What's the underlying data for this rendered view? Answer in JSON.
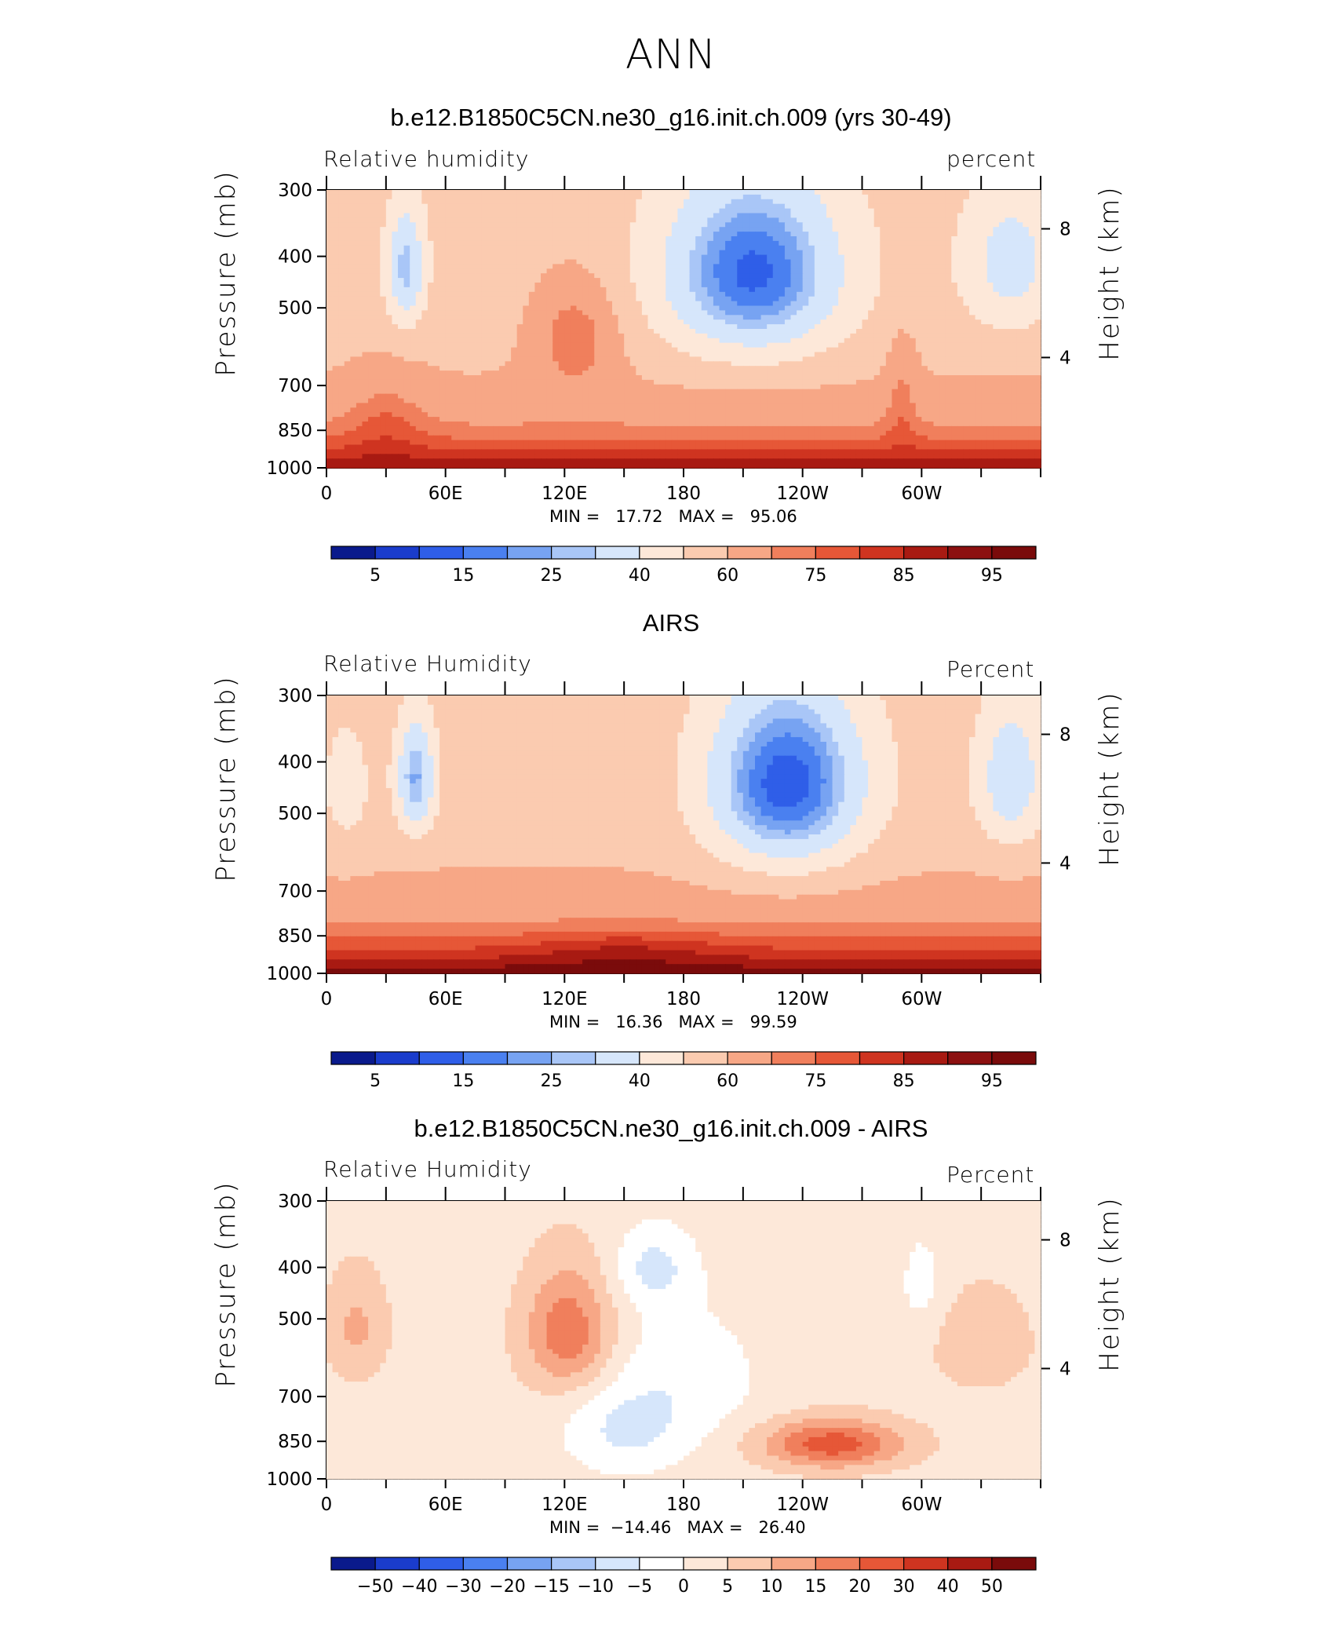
{
  "figure_title": "ANN",
  "colors": {
    "positive_scale": [
      "#0a1a8c",
      "#1a3ccc",
      "#2f5ee8",
      "#4a80f0",
      "#77a3f2",
      "#a9c6f7",
      "#d6e6fb",
      "#fde8d9",
      "#fbcbb0",
      "#f7a786",
      "#f07f5c",
      "#e65737",
      "#cf3420",
      "#a81a12",
      "#7a0b0b"
    ],
    "land_mask": "#000000"
  },
  "chart_data": [
    {
      "type": "heatmap",
      "title": "b.e12.B1850C5CN.ne30_g16.init.ch.009 (yrs 30-49)",
      "left_label": "Relative  humidity",
      "right_label": "percent",
      "ylabel": "Pressure  (mb)",
      "ylabel_right": "Height  (km)",
      "yticks": [
        "300",
        "400",
        "500",
        "700",
        "850",
        "1000"
      ],
      "yticks_right": [
        "8",
        "4"
      ],
      "xticks": [
        "0",
        "60E",
        "120E",
        "180",
        "120W",
        "60W"
      ],
      "min_max": "MIN =   17.72   MAX =   95.06",
      "min": 17.72,
      "max": 95.06,
      "colorbar_labels": [
        "5",
        "15",
        "25",
        "40",
        "60",
        "75",
        "85",
        "95"
      ],
      "features": [
        {
          "lon": 40,
          "p": 400,
          "value": 25
        },
        {
          "lon": 215,
          "p": 420,
          "value": 20
        },
        {
          "lon": 345,
          "p": 420,
          "value": 40
        },
        {
          "lon": 125,
          "p": 550,
          "value": 75
        },
        {
          "lon": 100,
          "p": 940,
          "value": 90
        },
        {
          "lon": 180,
          "p": 940,
          "value": 90
        },
        {
          "lon": 330,
          "p": 940,
          "value": 92
        }
      ]
    },
    {
      "type": "heatmap",
      "title": "AIRS",
      "left_label": "Relative  Humidity",
      "right_label": "Percent",
      "ylabel": "Pressure  (mb)",
      "ylabel_right": "Height  (km)",
      "yticks": [
        "300",
        "400",
        "500",
        "700",
        "850",
        "1000"
      ],
      "yticks_right": [
        "8",
        "4"
      ],
      "xticks": [
        "0",
        "60E",
        "120E",
        "180",
        "120W",
        "60W"
      ],
      "min_max": "MIN =   16.36   MAX =   99.59",
      "min": 16.36,
      "max": 99.59,
      "colorbar_labels": [
        "5",
        "15",
        "25",
        "40",
        "60",
        "75",
        "85",
        "95"
      ],
      "features": [
        {
          "lon": 45,
          "p": 420,
          "value": 20
        },
        {
          "lon": 230,
          "p": 450,
          "value": 15
        },
        {
          "lon": 345,
          "p": 420,
          "value": 35
        },
        {
          "lon": 150,
          "p": 950,
          "value": 95
        },
        {
          "lon": 260,
          "p": 980,
          "value": 97
        }
      ]
    },
    {
      "type": "heatmap",
      "title": "b.e12.B1850C5CN.ne30_g16.init.ch.009 - AIRS",
      "left_label": "Relative  Humidity",
      "right_label": "Percent",
      "ylabel": "Pressure  (mb)",
      "ylabel_right": "Height  (km)",
      "yticks": [
        "300",
        "400",
        "500",
        "700",
        "850",
        "1000"
      ],
      "yticks_right": [
        "8",
        "4"
      ],
      "xticks": [
        "0",
        "60E",
        "120E",
        "180",
        "120W",
        "60W"
      ],
      "min_max": "MIN =  −14.46   MAX =   26.40",
      "min": -14.46,
      "max": 26.4,
      "colorbar_labels": [
        "−50",
        "−40",
        "−30",
        "−20",
        "−15",
        "−10",
        "−5",
        "0",
        "5",
        "10",
        "15",
        "20",
        "30",
        "40",
        "50"
      ],
      "features": [
        {
          "lon": 120,
          "p": 520,
          "value": 20
        },
        {
          "lon": 250,
          "p": 850,
          "value": 25
        },
        {
          "lon": 165,
          "p": 400,
          "value": -10
        },
        {
          "lon": 150,
          "p": 820,
          "value": -5
        }
      ]
    }
  ]
}
